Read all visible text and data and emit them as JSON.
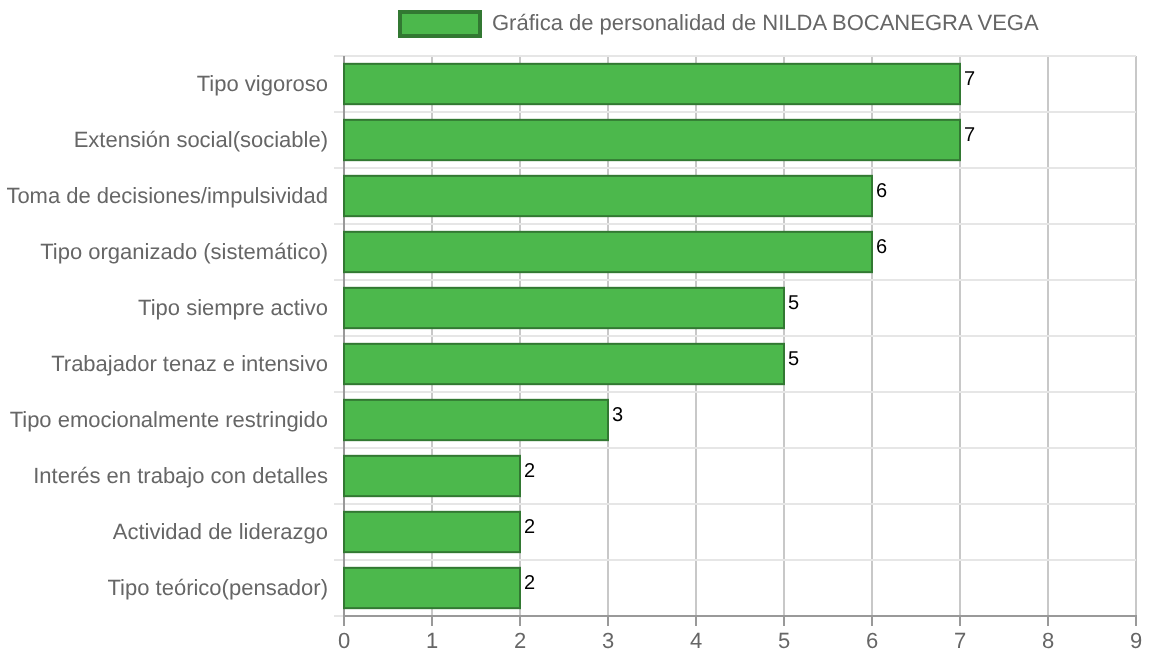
{
  "chart_data": {
    "type": "bar",
    "orientation": "horizontal",
    "categories": [
      "Tipo vigoroso",
      "Extensión social(sociable)",
      "Toma de decisiones/impulsividad",
      "Tipo organizado (sistemático)",
      "Tipo siempre activo",
      "Trabajador tenaz e intensivo",
      "Tipo emocionalmente restringido",
      "Interés en trabajo con detalles",
      "Actividad de liderazgo",
      "Tipo teórico(pensador)"
    ],
    "series": [
      {
        "name": "Gráfica de personalidad de NILDA BOCANEGRA VEGA",
        "color": "#4cb84c",
        "values": [
          7,
          7,
          6,
          6,
          5,
          5,
          3,
          2,
          2,
          2
        ]
      }
    ],
    "xlim": [
      0,
      9
    ],
    "xticks": [
      0,
      1,
      2,
      3,
      4,
      5,
      6,
      7,
      8,
      9
    ],
    "grid": true,
    "legend": "top",
    "data_labels": true
  }
}
